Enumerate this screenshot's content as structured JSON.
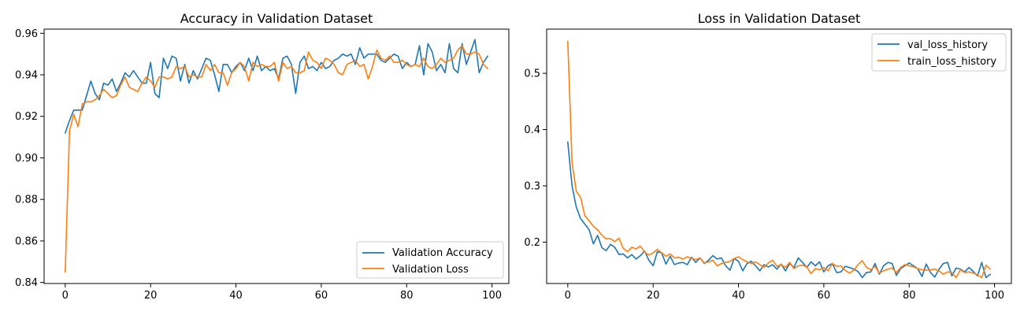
{
  "colors": {
    "blue": "#1f77b4",
    "orange": "#ff7f0e"
  },
  "chart_data": [
    {
      "type": "line",
      "title": "Accuracy in Validation Dataset",
      "xlim": [
        -4.95,
        103.95
      ],
      "ylim": [
        0.8395,
        0.962
      ],
      "xticks": [
        0,
        20,
        40,
        60,
        80,
        100
      ],
      "xtick_labels": [
        "0",
        "20",
        "40",
        "60",
        "80",
        "100"
      ],
      "yticks": [
        0.84,
        0.86,
        0.88,
        0.9,
        0.92,
        0.94,
        0.96
      ],
      "ytick_labels": [
        "0.84",
        "0.86",
        "0.88",
        "0.90",
        "0.92",
        "0.94",
        "0.96"
      ],
      "legend": "lower-right",
      "grid": false,
      "series": [
        {
          "name": "Validation Accuracy",
          "color": "#1f77b4",
          "values": [
            0.912,
            0.918,
            0.923,
            0.923,
            0.923,
            0.93,
            0.937,
            0.931,
            0.928,
            0.936,
            0.935,
            0.938,
            0.932,
            0.936,
            0.941,
            0.939,
            0.942,
            0.939,
            0.936,
            0.936,
            0.946,
            0.931,
            0.929,
            0.948,
            0.943,
            0.949,
            0.948,
            0.937,
            0.945,
            0.936,
            0.942,
            0.938,
            0.943,
            0.948,
            0.947,
            0.94,
            0.932,
            0.945,
            0.945,
            0.941,
            0.944,
            0.946,
            0.942,
            0.948,
            0.942,
            0.949,
            0.942,
            0.944,
            0.942,
            0.943,
            0.938,
            0.948,
            0.949,
            0.945,
            0.931,
            0.946,
            0.949,
            0.943,
            0.944,
            0.942,
            0.946,
            0.943,
            0.944,
            0.947,
            0.948,
            0.95,
            0.949,
            0.95,
            0.945,
            0.953,
            0.948,
            0.95,
            0.95,
            0.95,
            0.947,
            0.946,
            0.948,
            0.95,
            0.949,
            0.943,
            0.946,
            0.944,
            0.945,
            0.954,
            0.94,
            0.955,
            0.951,
            0.942,
            0.945,
            0.941,
            0.955,
            0.943,
            0.941,
            0.955,
            0.945,
            0.951,
            0.957,
            0.941,
            0.946,
            0.949
          ]
        },
        {
          "name": "Validation Loss",
          "color": "#ff7f0e",
          "values": [
            0.845,
            0.913,
            0.921,
            0.915,
            0.926,
            0.927,
            0.927,
            0.928,
            0.93,
            0.933,
            0.931,
            0.929,
            0.93,
            0.935,
            0.939,
            0.934,
            0.933,
            0.932,
            0.936,
            0.939,
            0.937,
            0.934,
            0.939,
            0.939,
            0.938,
            0.939,
            0.944,
            0.943,
            0.944,
            0.939,
            0.94,
            0.939,
            0.939,
            0.945,
            0.942,
            0.945,
            0.941,
            0.941,
            0.935,
            0.941,
            0.943,
            0.946,
            0.944,
            0.937,
            0.946,
            0.944,
            0.945,
            0.944,
            0.944,
            0.946,
            0.937,
            0.946,
            0.943,
            0.944,
            0.941,
            0.941,
            0.942,
            0.951,
            0.947,
            0.946,
            0.943,
            0.948,
            0.947,
            0.945,
            0.941,
            0.94,
            0.945,
            0.946,
            0.947,
            0.944,
            0.945,
            0.938,
            0.944,
            0.952,
            0.948,
            0.947,
            0.949,
            0.946,
            0.946,
            0.947,
            0.945,
            0.944,
            0.945,
            0.944,
            0.948,
            0.944,
            0.943,
            0.945,
            0.948,
            0.946,
            0.947,
            0.948,
            0.952,
            0.954,
            0.95,
            0.95,
            0.951,
            0.95,
            0.945,
            0.943
          ]
        }
      ]
    },
    {
      "type": "line",
      "title": "Loss in Validation Dataset",
      "xlim": [
        -4.95,
        103.95
      ],
      "ylim": [
        0.1265,
        0.5785
      ],
      "xticks": [
        0,
        20,
        40,
        60,
        80,
        100
      ],
      "xtick_labels": [
        "0",
        "20",
        "40",
        "60",
        "80",
        "100"
      ],
      "yticks": [
        0.2,
        0.3,
        0.4,
        0.5
      ],
      "ytick_labels": [
        "0.2",
        "0.3",
        "0.4",
        "0.5"
      ],
      "legend": "top-right",
      "grid": false,
      "series": [
        {
          "name": "val_loss_history",
          "color": "#1f77b4",
          "values": [
            0.378,
            0.3,
            0.262,
            0.242,
            0.232,
            0.222,
            0.197,
            0.212,
            0.19,
            0.185,
            0.196,
            0.191,
            0.178,
            0.179,
            0.172,
            0.178,
            0.17,
            0.176,
            0.184,
            0.168,
            0.158,
            0.183,
            0.181,
            0.161,
            0.175,
            0.16,
            0.163,
            0.164,
            0.16,
            0.173,
            0.164,
            0.172,
            0.162,
            0.168,
            0.176,
            0.17,
            0.172,
            0.158,
            0.15,
            0.171,
            0.166,
            0.149,
            0.162,
            0.166,
            0.158,
            0.149,
            0.16,
            0.156,
            0.16,
            0.152,
            0.161,
            0.149,
            0.162,
            0.155,
            0.172,
            0.164,
            0.155,
            0.165,
            0.158,
            0.165,
            0.147,
            0.158,
            0.162,
            0.146,
            0.147,
            0.157,
            0.155,
            0.152,
            0.148,
            0.137,
            0.146,
            0.147,
            0.162,
            0.143,
            0.158,
            0.164,
            0.162,
            0.141,
            0.153,
            0.158,
            0.163,
            0.158,
            0.153,
            0.139,
            0.161,
            0.146,
            0.138,
            0.152,
            0.162,
            0.164,
            0.14,
            0.154,
            0.152,
            0.147,
            0.155,
            0.148,
            0.14,
            0.164,
            0.137,
            0.143
          ]
        },
        {
          "name": "train_loss_history",
          "color": "#ff7f0e",
          "values": [
            0.557,
            0.342,
            0.29,
            0.28,
            0.247,
            0.238,
            0.228,
            0.222,
            0.212,
            0.206,
            0.206,
            0.201,
            0.207,
            0.189,
            0.183,
            0.191,
            0.188,
            0.193,
            0.182,
            0.177,
            0.181,
            0.187,
            0.181,
            0.175,
            0.179,
            0.172,
            0.173,
            0.17,
            0.174,
            0.171,
            0.169,
            0.172,
            0.163,
            0.165,
            0.168,
            0.158,
            0.162,
            0.164,
            0.166,
            0.171,
            0.174,
            0.169,
            0.165,
            0.162,
            0.165,
            0.16,
            0.155,
            0.163,
            0.168,
            0.157,
            0.16,
            0.155,
            0.164,
            0.153,
            0.158,
            0.159,
            0.156,
            0.144,
            0.153,
            0.151,
            0.155,
            0.149,
            0.162,
            0.157,
            0.158,
            0.15,
            0.145,
            0.15,
            0.16,
            0.167,
            0.155,
            0.151,
            0.157,
            0.145,
            0.149,
            0.152,
            0.154,
            0.146,
            0.155,
            0.16,
            0.158,
            0.156,
            0.153,
            0.151,
            0.15,
            0.151,
            0.152,
            0.149,
            0.143,
            0.147,
            0.146,
            0.137,
            0.151,
            0.146,
            0.147,
            0.145,
            0.142,
            0.137,
            0.159,
            0.152
          ]
        }
      ]
    }
  ]
}
